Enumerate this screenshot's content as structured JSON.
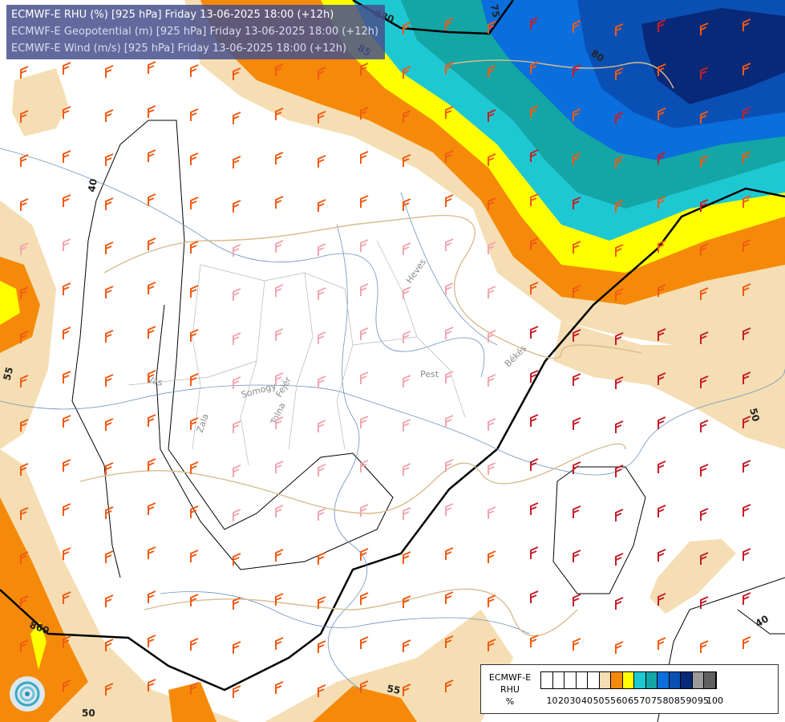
{
  "header": {
    "line1": "ECMWF-E RHU (%) [925 hPa] Friday 13-06-2025 18:00 (+12h)",
    "line2": "ECMWF-E Geopotential (m) [925 hPa] Friday 13-06-2025 18:00 (+12h)",
    "line3": "ECMWF-E Wind (m/s) [925 hPa] Friday 13-06-2025 18:00 (+12h)"
  },
  "legend": {
    "title_line1": "ECMWF-E",
    "title_line2": "RHU",
    "title_line3": "%",
    "ticks": [
      "10",
      "20",
      "30",
      "40",
      "50",
      "55",
      "60",
      "65",
      "70",
      "75",
      "80",
      "85",
      "90",
      "95",
      "100"
    ],
    "colors": [
      "#ffffff",
      "#ffffff",
      "#ffffff",
      "#ffffff",
      "#ffffff",
      "#f5deb3",
      "#f58a0a",
      "#ffff00",
      "#1ec8d2",
      "#14a5a5",
      "#0a6edc",
      "#0a50b4",
      "#082878",
      "#9a9a9a",
      "#606060"
    ]
  },
  "contour_labels": {
    "geopotential": [
      "880",
      "860"
    ],
    "rhu": [
      "40",
      "55",
      "50",
      "50",
      "55",
      "40",
      "50",
      "75",
      "80",
      "85"
    ]
  },
  "place_names": [
    "Heves",
    "Békés",
    "Pest",
    "Vas",
    "Somogy",
    "Fejér",
    "Zala",
    "Tolna"
  ],
  "icons": {
    "logo": "meteo-logo-icon"
  }
}
